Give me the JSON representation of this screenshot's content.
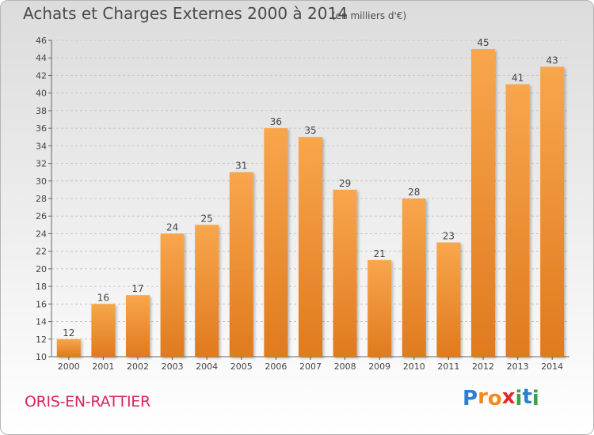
{
  "header": {
    "title": "Achats et Charges Externes 2000 à 2014",
    "subtitle": "(en milliers d'€)"
  },
  "footer": {
    "town": "ORIS-EN-RATTIER",
    "logo": {
      "letters": [
        "P",
        "r",
        "o",
        "x",
        "i",
        "t",
        "i"
      ],
      "colors": [
        "#2f7fd0",
        "#f08a1c",
        "#f08a1c",
        "#e02a2a",
        "#3aa24a",
        "#2f7fd0",
        "#3aa24a"
      ]
    }
  },
  "chart_data": {
    "type": "bar",
    "title": "Achats et Charges Externes 2000 à 2014",
    "subtitle": "(en milliers d'€)",
    "categories": [
      "2000",
      "2001",
      "2002",
      "2003",
      "2004",
      "2005",
      "2006",
      "2007",
      "2008",
      "2009",
      "2010",
      "2011",
      "2012",
      "2013",
      "2014"
    ],
    "values": [
      12,
      16,
      17,
      24,
      25,
      31,
      36,
      35,
      29,
      21,
      28,
      23,
      45,
      41,
      43
    ],
    "ylim": [
      10,
      46
    ],
    "yticks": [
      10,
      12,
      14,
      16,
      18,
      20,
      22,
      24,
      26,
      28,
      30,
      32,
      34,
      36,
      38,
      40,
      42,
      44,
      46
    ],
    "grid": true,
    "bar_color": "#f59b3f"
  }
}
